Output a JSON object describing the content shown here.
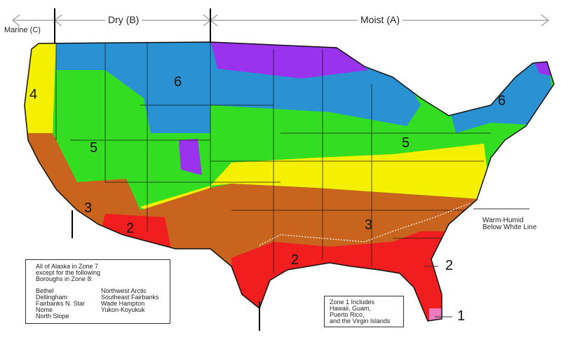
{
  "header": {
    "marine": "Marine (C)",
    "dry": "Dry (B)",
    "moist": "Moist (A)"
  },
  "zones": {
    "nw4": "4",
    "n6": "6",
    "w5": "5",
    "sw3": "3",
    "sw2": "2",
    "ne6": "6",
    "e5": "5",
    "s3": "3",
    "gulf2": "2",
    "fl2": "2",
    "fl1": "1"
  },
  "alaska_box": {
    "line1": "All of Alaska in Zone 7",
    "line2": "except for the following",
    "line3": "Boroughs in Zone 8:",
    "col1": [
      "Bethel",
      "Dellingham",
      "Fairbanks N. Star",
      "Nome",
      "North Slope"
    ],
    "col2": [
      "Northwest Arctic",
      "Southeast Fairbanks",
      "Wade Hampton",
      "Yukon-Koyukuk"
    ]
  },
  "zone1_box": {
    "lines": [
      "Zone 1 Includes",
      "Hawaii, Guam,",
      "Puerto Rico,",
      "and the Virgin Islands"
    ]
  },
  "warm_humid": {
    "line1": "Warm-Humid",
    "line2": "Below White Line"
  },
  "colors": {
    "zone1": "#f07ac0",
    "zone2": "#f01e1e",
    "zone3": "#c8641e",
    "zone4": "#f5f000",
    "zone5": "#33dd22",
    "zone6": "#2a92d2",
    "zone7": "#9933ee"
  }
}
